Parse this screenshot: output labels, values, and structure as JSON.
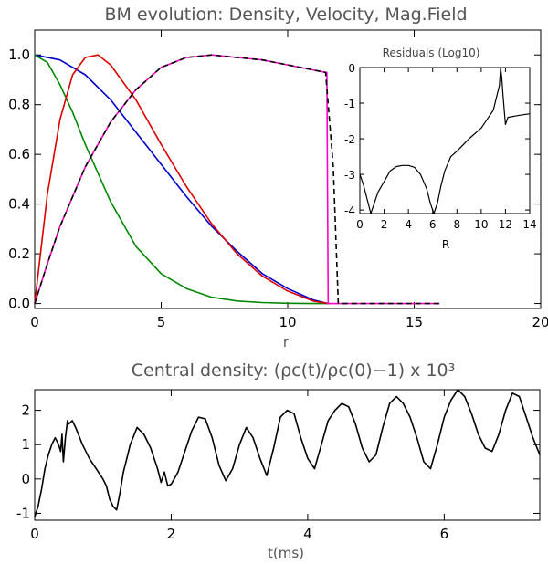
{
  "chart_data": [
    {
      "type": "line",
      "title": "BM evolution: Density, Velocity, Mag.Field",
      "xlabel": "r",
      "ylabel": "",
      "xlim": [
        0,
        20
      ],
      "ylim": [
        -0.02,
        1.1
      ],
      "x_ticks": [
        "0",
        "5",
        "10",
        "15",
        "20"
      ],
      "y_ticks": [
        "0.0",
        "0.2",
        "0.4",
        "0.6",
        "0.8",
        "1.0"
      ],
      "series": [
        {
          "color": "#0000cc",
          "x": [
            0,
            1,
            2,
            3,
            4,
            5,
            6,
            7,
            8,
            9,
            10,
            11,
            11.6
          ],
          "y": [
            1.0,
            0.98,
            0.92,
            0.82,
            0.69,
            0.56,
            0.43,
            0.31,
            0.21,
            0.12,
            0.06,
            0.015,
            0.0
          ]
        },
        {
          "color": "#008800",
          "x": [
            0,
            0.5,
            1,
            1.5,
            2,
            3,
            4,
            5,
            6,
            7,
            8,
            9,
            10,
            11,
            11.6
          ],
          "y": [
            1.0,
            0.97,
            0.88,
            0.77,
            0.64,
            0.41,
            0.23,
            0.12,
            0.06,
            0.025,
            0.01,
            0.004,
            0.001,
            0.0,
            0.0
          ]
        },
        {
          "color": "#dd0000",
          "x": [
            0,
            0.5,
            1,
            1.5,
            2,
            2.5,
            3,
            4,
            5,
            6,
            7,
            8,
            9,
            10,
            11,
            11.6
          ],
          "y": [
            0.0,
            0.44,
            0.74,
            0.92,
            0.99,
            1.0,
            0.96,
            0.82,
            0.64,
            0.47,
            0.32,
            0.2,
            0.11,
            0.05,
            0.01,
            0.0
          ]
        },
        {
          "color": "#ff00cc",
          "x": [
            0,
            0.5,
            1,
            2,
            3,
            4,
            5,
            6,
            7,
            8,
            9,
            10,
            11,
            11.5,
            11.55,
            11.6,
            12,
            14,
            16
          ],
          "y": [
            0.0,
            0.16,
            0.31,
            0.55,
            0.73,
            0.86,
            0.95,
            0.99,
            1.0,
            0.99,
            0.98,
            0.96,
            0.94,
            0.93,
            0.93,
            0.0,
            0.0,
            0.0,
            0.0
          ]
        },
        {
          "color": "#000000",
          "dashed": true,
          "x": [
            0,
            0.5,
            1,
            2,
            3,
            4,
            5,
            6,
            7,
            8,
            9,
            10,
            11,
            11.5,
            11.8,
            12,
            13,
            14,
            16
          ],
          "y": [
            0.0,
            0.16,
            0.31,
            0.55,
            0.73,
            0.86,
            0.95,
            0.99,
            1.0,
            0.99,
            0.98,
            0.96,
            0.94,
            0.93,
            0.55,
            0.0,
            0.0,
            0.0,
            0.0
          ]
        }
      ]
    },
    {
      "type": "line",
      "title": "Residuals (Log10)",
      "xlabel": "R",
      "ylabel": "",
      "xlim": [
        0,
        14
      ],
      "ylim": [
        -4.1,
        0
      ],
      "x_ticks": [
        "0",
        "2",
        "4",
        "6",
        "8",
        "10",
        "12",
        "14"
      ],
      "y_ticks": [
        "-4",
        "-3",
        "-2",
        "-1",
        "0"
      ],
      "series": [
        {
          "color": "#000000",
          "x": [
            0,
            0.3,
            0.6,
            0.9,
            1.2,
            1.5,
            2,
            2.5,
            3,
            3.5,
            4,
            4.5,
            5,
            5.5,
            5.8,
            6.1,
            6.4,
            6.7,
            7,
            7.5,
            8,
            9,
            10,
            11,
            11.5,
            11.6,
            11.7,
            11.8,
            12.0,
            12.2,
            13,
            14
          ],
          "y": [
            -3.0,
            -3.3,
            -3.7,
            -4.1,
            -3.8,
            -3.5,
            -3.2,
            -2.9,
            -2.78,
            -2.75,
            -2.75,
            -2.8,
            -3.0,
            -3.4,
            -3.8,
            -4.1,
            -3.8,
            -3.3,
            -2.9,
            -2.5,
            -2.35,
            -2.0,
            -1.7,
            -1.2,
            -0.5,
            0.0,
            -0.3,
            -0.8,
            -1.6,
            -1.4,
            -1.35,
            -1.3
          ]
        }
      ]
    },
    {
      "type": "line",
      "title": "Central density:  (ρc(t)/ρc(0)−1) x 10³",
      "xlabel": "t(ms)",
      "ylabel": "",
      "xlim": [
        0,
        7.4
      ],
      "ylim": [
        -1.2,
        2.6
      ],
      "x_ticks": [
        "0",
        "2",
        "4",
        "6"
      ],
      "y_ticks": [
        "-1",
        "0",
        "1",
        "2"
      ],
      "series": [
        {
          "color": "#000000",
          "x": [
            0,
            0.05,
            0.1,
            0.15,
            0.2,
            0.25,
            0.3,
            0.35,
            0.38,
            0.4,
            0.42,
            0.45,
            0.48,
            0.5,
            0.55,
            0.6,
            0.7,
            0.8,
            0.9,
            1.0,
            1.05,
            1.1,
            1.15,
            1.2,
            1.25,
            1.3,
            1.35,
            1.4,
            1.5,
            1.6,
            1.7,
            1.8,
            1.85,
            1.9,
            1.95,
            2.0,
            2.1,
            2.2,
            2.3,
            2.4,
            2.5,
            2.6,
            2.7,
            2.8,
            2.9,
            3.0,
            3.1,
            3.2,
            3.3,
            3.4,
            3.5,
            3.6,
            3.7,
            3.8,
            3.9,
            4.0,
            4.1,
            4.2,
            4.3,
            4.4,
            4.5,
            4.6,
            4.7,
            4.8,
            4.9,
            5.0,
            5.1,
            5.2,
            5.3,
            5.4,
            5.5,
            5.6,
            5.7,
            5.8,
            5.9,
            6.0,
            6.1,
            6.2,
            6.3,
            6.4,
            6.5,
            6.6,
            6.7,
            6.8,
            6.9,
            7.0,
            7.1,
            7.2,
            7.3,
            7.4
          ],
          "y": [
            -1.1,
            -0.8,
            -0.3,
            0.3,
            0.7,
            1.0,
            1.2,
            1.0,
            0.8,
            1.3,
            0.5,
            1.2,
            1.7,
            1.6,
            1.7,
            1.5,
            1.0,
            0.6,
            0.3,
            0.0,
            -0.2,
            -0.6,
            -0.8,
            -0.9,
            -0.4,
            0.2,
            0.6,
            1.0,
            1.5,
            1.3,
            0.9,
            0.3,
            -0.1,
            0.2,
            -0.2,
            -0.15,
            0.2,
            0.8,
            1.4,
            1.8,
            1.75,
            1.2,
            0.4,
            -0.05,
            0.3,
            1.0,
            1.5,
            1.2,
            0.6,
            0.1,
            0.9,
            1.8,
            2.0,
            1.9,
            1.2,
            0.6,
            0.3,
            1.0,
            1.7,
            2.0,
            2.2,
            2.1,
            1.6,
            0.9,
            0.5,
            0.7,
            1.5,
            2.2,
            2.4,
            2.2,
            1.8,
            1.2,
            0.5,
            0.3,
            1.0,
            1.8,
            2.3,
            2.6,
            2.4,
            1.9,
            1.3,
            0.9,
            0.8,
            1.3,
            2.0,
            2.5,
            2.4,
            1.8,
            1.2,
            0.7
          ]
        }
      ]
    }
  ]
}
